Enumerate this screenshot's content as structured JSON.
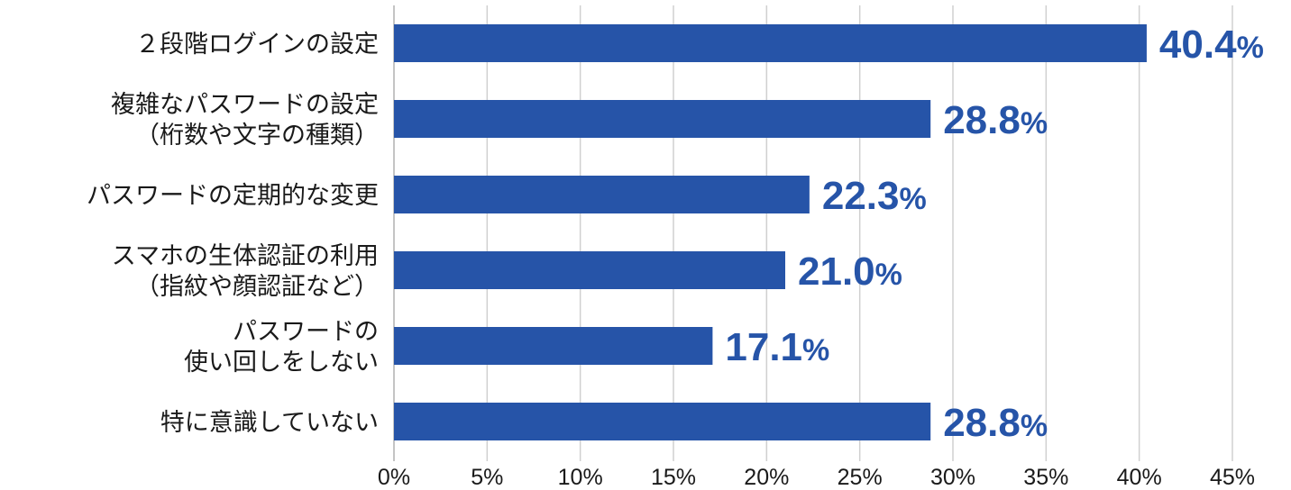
{
  "chart_data": {
    "type": "bar",
    "orientation": "horizontal",
    "categories": [
      [
        "２段階ログインの設定"
      ],
      [
        "複雑なパスワードの設定",
        "（桁数や文字の種類）"
      ],
      [
        "パスワードの定期的な変更"
      ],
      [
        "スマホの生体認証の利用",
        "（指紋や顔認証など）"
      ],
      [
        "パスワードの",
        "使い回しをしない"
      ],
      [
        "特に意識していない"
      ]
    ],
    "values": [
      40.4,
      28.8,
      22.3,
      21.0,
      17.1,
      28.8
    ],
    "value_labels": [
      "40.4",
      "28.8",
      "22.3",
      "21.0",
      "17.1",
      "28.8"
    ],
    "value_unit": "%",
    "xlim": [
      0,
      45
    ],
    "xticks": [
      0,
      5,
      10,
      15,
      20,
      25,
      30,
      35,
      40,
      45
    ],
    "xtick_labels": [
      "0%",
      "5%",
      "10%",
      "15%",
      "20%",
      "25%",
      "30%",
      "35%",
      "40%",
      "45%"
    ],
    "grid": "vertical",
    "title": "",
    "xlabel": "",
    "ylabel": "",
    "colors": {
      "bar": "#2654a8",
      "value_text": "#2654a8",
      "grid": "#d0d0d0",
      "axis": "#b0b0b0",
      "text": "#1a1a1a"
    }
  }
}
